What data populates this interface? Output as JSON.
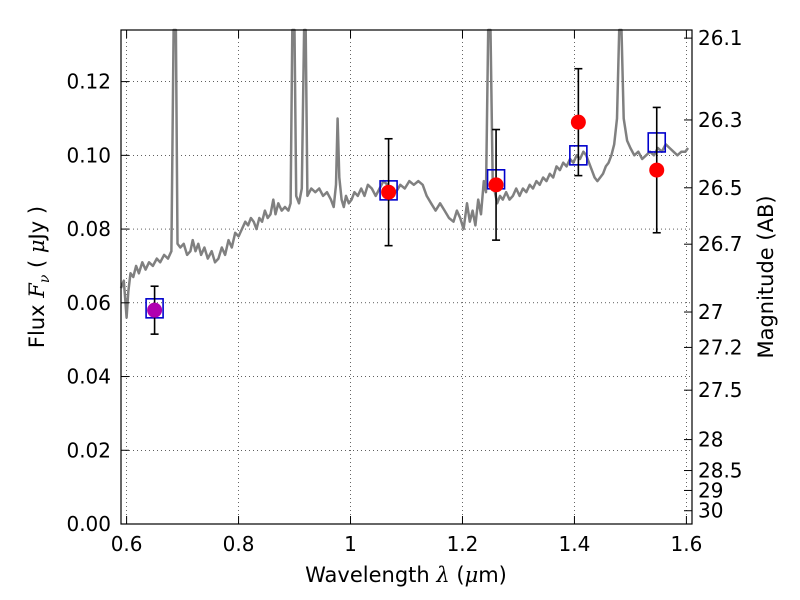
{
  "chart_data": {
    "type": "scatter",
    "xlabel": {
      "prefix": "Wavelength ",
      "symbol": "λ",
      "unit_open": " (",
      "unit_math": "μ",
      "unit_rest": "m)"
    },
    "ylabel": {
      "prefix": "Flux ",
      "symbol": "F",
      "subscript": "ν",
      "unit_open": " ( ",
      "unit_math": "μ",
      "unit_rest": "Jy )"
    },
    "y2label": "Magnitude (AB)",
    "xlim": [
      0.59,
      1.61
    ],
    "ylim": [
      0.0,
      0.134
    ],
    "x_ticks": [
      0.6,
      0.8,
      1.0,
      1.2,
      1.4,
      1.6
    ],
    "x_tick_labels": [
      "0.6",
      "0.8",
      "1",
      "1.2",
      "1.4",
      "1.6"
    ],
    "y_ticks": [
      0.0,
      0.02,
      0.04,
      0.06,
      0.08,
      0.1,
      0.12
    ],
    "y_tick_labels": [
      "0.00",
      "0.02",
      "0.04",
      "0.06",
      "0.08",
      "0.10",
      "0.12"
    ],
    "y2_ticks": [
      {
        "label": "26.1",
        "flux": 0.1318
      },
      {
        "label": "26.3",
        "flux": 0.1096
      },
      {
        "label": "26.5",
        "flux": 0.0912
      },
      {
        "label": "26.7",
        "flux": 0.0759
      },
      {
        "label": "27",
        "flux": 0.0575
      },
      {
        "label": "27.2",
        "flux": 0.0479
      },
      {
        "label": "27.5",
        "flux": 0.0363
      },
      {
        "label": "28",
        "flux": 0.0229
      },
      {
        "label": "28.5",
        "flux": 0.0145
      },
      {
        "label": "29",
        "flux": 0.0091
      },
      {
        "label": "30",
        "flux": 0.0036
      }
    ],
    "grid": true,
    "grid_style": "dotted",
    "series": [
      {
        "style": "line",
        "color": "#808080",
        "points": [
          [
            0.59,
            0.064
          ],
          [
            0.595,
            0.066
          ],
          [
            0.598,
            0.06
          ],
          [
            0.6,
            0.056
          ],
          [
            0.603,
            0.063
          ],
          [
            0.607,
            0.068
          ],
          [
            0.612,
            0.067
          ],
          [
            0.617,
            0.07
          ],
          [
            0.622,
            0.068
          ],
          [
            0.628,
            0.071
          ],
          [
            0.634,
            0.069
          ],
          [
            0.64,
            0.071
          ],
          [
            0.647,
            0.07
          ],
          [
            0.654,
            0.072
          ],
          [
            0.66,
            0.071
          ],
          [
            0.667,
            0.073
          ],
          [
            0.674,
            0.072
          ],
          [
            0.68,
            0.074
          ],
          [
            0.684,
            0.135
          ],
          [
            0.688,
            0.135
          ],
          [
            0.691,
            0.076
          ],
          [
            0.696,
            0.075
          ],
          [
            0.702,
            0.076
          ],
          [
            0.708,
            0.073
          ],
          [
            0.714,
            0.074
          ],
          [
            0.718,
            0.077
          ],
          [
            0.723,
            0.074
          ],
          [
            0.728,
            0.076
          ],
          [
            0.733,
            0.073
          ],
          [
            0.739,
            0.075
          ],
          [
            0.745,
            0.072
          ],
          [
            0.752,
            0.074
          ],
          [
            0.758,
            0.071
          ],
          [
            0.764,
            0.072
          ],
          [
            0.77,
            0.075
          ],
          [
            0.776,
            0.073
          ],
          [
            0.782,
            0.077
          ],
          [
            0.788,
            0.075
          ],
          [
            0.794,
            0.079
          ],
          [
            0.8,
            0.078
          ],
          [
            0.806,
            0.08
          ],
          [
            0.812,
            0.082
          ],
          [
            0.817,
            0.081
          ],
          [
            0.822,
            0.083
          ],
          [
            0.827,
            0.082
          ],
          [
            0.832,
            0.08
          ],
          [
            0.837,
            0.083
          ],
          [
            0.842,
            0.082
          ],
          [
            0.847,
            0.085
          ],
          [
            0.852,
            0.083
          ],
          [
            0.857,
            0.084
          ],
          [
            0.862,
            0.088
          ],
          [
            0.866,
            0.084
          ],
          [
            0.871,
            0.087
          ],
          [
            0.877,
            0.085
          ],
          [
            0.883,
            0.086
          ],
          [
            0.889,
            0.085
          ],
          [
            0.893,
            0.087
          ],
          [
            0.896,
            0.135
          ],
          [
            0.9,
            0.135
          ],
          [
            0.903,
            0.089
          ],
          [
            0.908,
            0.087
          ],
          [
            0.913,
            0.091
          ],
          [
            0.917,
            0.135
          ],
          [
            0.92,
            0.135
          ],
          [
            0.923,
            0.089
          ],
          [
            0.93,
            0.091
          ],
          [
            0.937,
            0.09
          ],
          [
            0.944,
            0.091
          ],
          [
            0.951,
            0.089
          ],
          [
            0.958,
            0.09
          ],
          [
            0.965,
            0.088
          ],
          [
            0.97,
            0.086
          ],
          [
            0.974,
            0.092
          ],
          [
            0.977,
            0.11
          ],
          [
            0.98,
            0.094
          ],
          [
            0.984,
            0.088
          ],
          [
            0.988,
            0.086
          ],
          [
            0.992,
            0.089
          ],
          [
            0.997,
            0.087
          ],
          [
            1.002,
            0.088
          ],
          [
            1.007,
            0.09
          ],
          [
            1.013,
            0.089
          ],
          [
            1.019,
            0.091
          ],
          [
            1.025,
            0.089
          ],
          [
            1.031,
            0.092
          ],
          [
            1.038,
            0.091
          ],
          [
            1.045,
            0.089
          ],
          [
            1.052,
            0.091
          ],
          [
            1.059,
            0.093
          ],
          [
            1.066,
            0.092
          ],
          [
            1.073,
            0.091
          ],
          [
            1.081,
            0.09
          ],
          [
            1.089,
            0.092
          ],
          [
            1.097,
            0.091
          ],
          [
            1.105,
            0.093
          ],
          [
            1.113,
            0.092
          ],
          [
            1.121,
            0.093
          ],
          [
            1.129,
            0.092
          ],
          [
            1.136,
            0.089
          ],
          [
            1.144,
            0.087
          ],
          [
            1.152,
            0.085
          ],
          [
            1.16,
            0.087
          ],
          [
            1.168,
            0.085
          ],
          [
            1.176,
            0.083
          ],
          [
            1.184,
            0.082
          ],
          [
            1.19,
            0.085
          ],
          [
            1.196,
            0.083
          ],
          [
            1.202,
            0.08
          ],
          [
            1.208,
            0.087
          ],
          [
            1.213,
            0.082
          ],
          [
            1.218,
            0.085
          ],
          [
            1.223,
            0.081
          ],
          [
            1.228,
            0.088
          ],
          [
            1.233,
            0.084
          ],
          [
            1.238,
            0.093
          ],
          [
            1.242,
            0.09
          ],
          [
            1.246,
            0.135
          ],
          [
            1.25,
            0.135
          ],
          [
            1.254,
            0.093
          ],
          [
            1.258,
            0.09
          ],
          [
            1.262,
            0.087
          ],
          [
            1.267,
            0.089
          ],
          [
            1.272,
            0.088
          ],
          [
            1.278,
            0.09
          ],
          [
            1.284,
            0.088
          ],
          [
            1.29,
            0.089
          ],
          [
            1.296,
            0.091
          ],
          [
            1.302,
            0.089
          ],
          [
            1.308,
            0.091
          ],
          [
            1.314,
            0.09
          ],
          [
            1.32,
            0.092
          ],
          [
            1.326,
            0.091
          ],
          [
            1.332,
            0.093
          ],
          [
            1.338,
            0.092
          ],
          [
            1.344,
            0.094
          ],
          [
            1.35,
            0.093
          ],
          [
            1.356,
            0.095
          ],
          [
            1.362,
            0.094
          ],
          [
            1.368,
            0.097
          ],
          [
            1.374,
            0.096
          ],
          [
            1.38,
            0.098
          ],
          [
            1.386,
            0.097
          ],
          [
            1.392,
            0.099
          ],
          [
            1.398,
            0.098
          ],
          [
            1.404,
            0.1
          ],
          [
            1.41,
            0.099
          ],
          [
            1.416,
            0.101
          ],
          [
            1.421,
            0.1
          ],
          [
            1.426,
            0.098
          ],
          [
            1.431,
            0.096
          ],
          [
            1.436,
            0.094
          ],
          [
            1.441,
            0.093
          ],
          [
            1.446,
            0.094
          ],
          [
            1.451,
            0.095
          ],
          [
            1.456,
            0.097
          ],
          [
            1.461,
            0.098
          ],
          [
            1.466,
            0.1
          ],
          [
            1.471,
            0.103
          ],
          [
            1.476,
            0.11
          ],
          [
            1.48,
            0.135
          ],
          [
            1.484,
            0.135
          ],
          [
            1.488,
            0.11
          ],
          [
            1.494,
            0.104
          ],
          [
            1.5,
            0.102
          ],
          [
            1.507,
            0.1
          ],
          [
            1.514,
            0.101
          ],
          [
            1.521,
            0.099
          ],
          [
            1.528,
            0.1
          ],
          [
            1.535,
            0.101
          ],
          [
            1.542,
            0.1
          ],
          [
            1.549,
            0.102
          ],
          [
            1.556,
            0.101
          ],
          [
            1.563,
            0.103
          ],
          [
            1.57,
            0.102
          ],
          [
            1.577,
            0.101
          ],
          [
            1.584,
            0.1
          ],
          [
            1.591,
            0.101
          ],
          [
            1.598,
            0.101
          ],
          [
            1.603,
            0.102
          ]
        ]
      },
      {
        "style": "open-square",
        "color": "#0000cc",
        "x": [
          0.65,
          1.068,
          1.26,
          1.407,
          1.547
        ],
        "y": [
          0.0585,
          0.0905,
          0.0935,
          0.1,
          0.1035
        ]
      },
      {
        "style": "filled-circle-with-error",
        "color": "#ff0000",
        "x": [
          0.65,
          1.068,
          1.26,
          1.407,
          1.547
        ],
        "y": [
          0.058,
          0.09,
          0.092,
          0.109,
          0.096
        ],
        "y_err": [
          0.0065,
          0.0145,
          0.015,
          0.0145,
          0.017
        ]
      }
    ],
    "overlap_color": "#b000b0"
  }
}
